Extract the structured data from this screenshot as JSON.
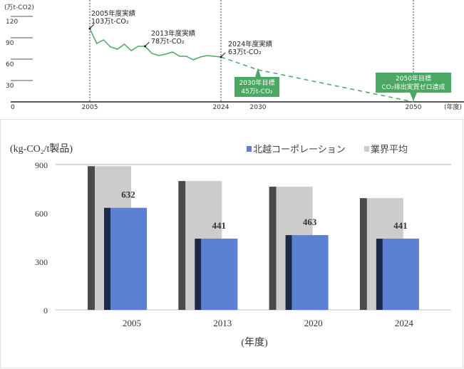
{
  "chart_data": [
    {
      "type": "line",
      "ylabel": "(万t-CO2)",
      "xlabel": "(年度)",
      "ylim": [
        0,
        120
      ],
      "yticks": [
        "0",
        "30",
        "60",
        "90",
        "120"
      ],
      "xticks": [
        "2005",
        "2024",
        "2030",
        "2050"
      ],
      "series": [
        {
          "style": "solid",
          "color": "#4aa862",
          "x": [
            2005,
            2006,
            2007,
            2008,
            2009,
            2010,
            2011,
            2012,
            2013,
            2014,
            2015,
            2016,
            2017,
            2018,
            2019,
            2020,
            2021,
            2022,
            2023,
            2024
          ],
          "y": [
            103,
            82,
            87,
            77,
            74,
            81,
            72,
            78,
            78,
            68,
            65,
            67,
            70,
            64,
            64,
            59,
            63,
            65,
            64,
            63
          ]
        },
        {
          "style": "dashed",
          "color": "#4aa862",
          "x": [
            2024,
            2030,
            2050
          ],
          "y": [
            63,
            45,
            0
          ]
        }
      ],
      "annotations": [
        {
          "line1": "2005年度実績",
          "line2": "103万t-CO₂"
        },
        {
          "line1": "2013年度実績",
          "line2": "78万t-CO₂"
        },
        {
          "line1": "2024年度実績",
          "line2": "63万t-CO₂"
        }
      ],
      "callouts": [
        {
          "line1": "2030年目標",
          "line2": "45万t-CO₂"
        },
        {
          "line1": "2050年目標",
          "line2": "CO₂排出実質ゼロ達成"
        }
      ]
    },
    {
      "type": "bar",
      "ylabel": "(kg-CO₂/t製品)",
      "xlabel": "(年度)",
      "ylim": [
        0,
        900
      ],
      "yticks": [
        "0",
        "300",
        "600",
        "900"
      ],
      "categories": [
        "2005",
        "2013",
        "2020",
        "2024"
      ],
      "legend_position": "top-right",
      "series": [
        {
          "name": "北越コーポレーション",
          "color": "#5b7fd1",
          "values": [
            632,
            441,
            463,
            441
          ]
        },
        {
          "name": "業界平均",
          "color": "#cccccc",
          "values": [
            890,
            798,
            763,
            692
          ]
        }
      ]
    }
  ]
}
